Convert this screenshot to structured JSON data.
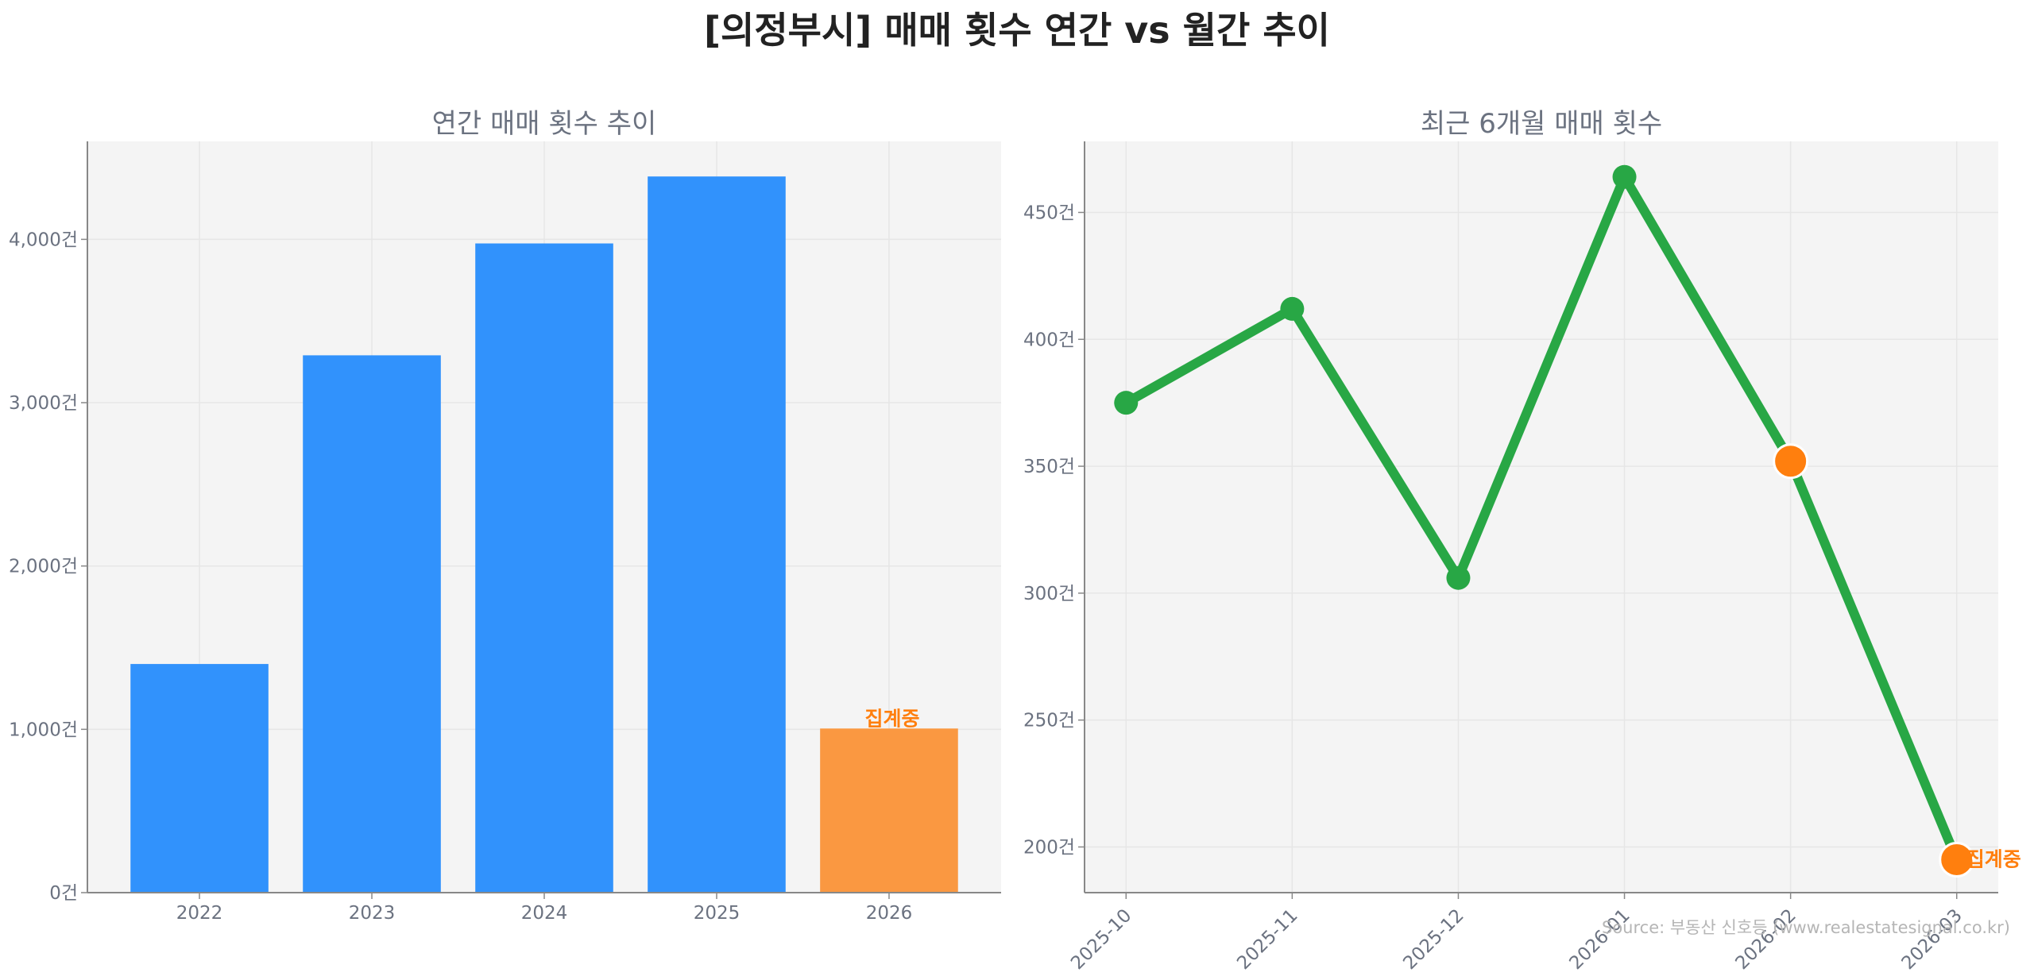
{
  "title": "[의정부시] 매매 횟수 연간 vs 월간 추이",
  "source": "Source: 부동산 신호등 (www.realestatesignal.co.kr)",
  "colors": {
    "annual_bar": "#3192fc",
    "pending_bar": "#fa9841",
    "monthly_line": "#28a745",
    "pending_point": "#ff7f0e",
    "annotation": "#ff7f0e",
    "plot_bg": "#f4f4f4",
    "grid": "#e6e6e6"
  },
  "chart_data": [
    {
      "type": "bar",
      "title": "연간 매매 횟수 추이",
      "categories": [
        "2022",
        "2023",
        "2024",
        "2025",
        "2026"
      ],
      "values": [
        1400,
        3290,
        3975,
        4385,
        1005
      ],
      "pending_index": 4,
      "annotation": "집계중",
      "ylim": [
        0,
        4600
      ],
      "yticks": [
        0,
        1000,
        2000,
        3000,
        4000
      ],
      "ytick_labels": [
        "0건",
        "1,000건",
        "2,000건",
        "3,000건",
        "4,000건"
      ],
      "grid": true
    },
    {
      "type": "line",
      "title": "최근 6개월 매매 횟수",
      "categories": [
        "2025-10",
        "2025-11",
        "2025-12",
        "2026-01",
        "2026-02",
        "2026-03"
      ],
      "values": [
        375,
        412,
        306,
        464,
        352,
        195
      ],
      "pending_indices": [
        4,
        5
      ],
      "annotation": "집계중",
      "ylim": [
        182,
        478
      ],
      "yticks": [
        200,
        250,
        300,
        350,
        400,
        450
      ],
      "ytick_labels": [
        "200건",
        "250건",
        "300건",
        "350건",
        "400건",
        "450건"
      ],
      "grid": true
    }
  ]
}
